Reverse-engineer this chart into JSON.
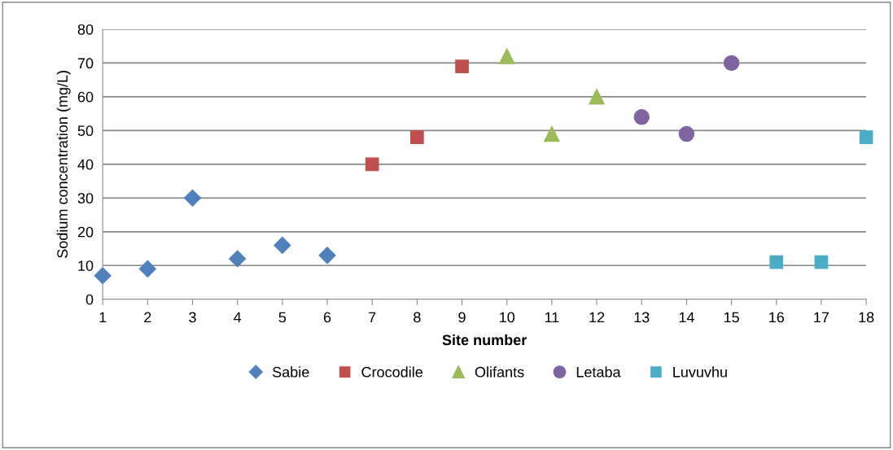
{
  "chart_data": {
    "type": "scatter",
    "xlabel": "Site number",
    "ylabel": "Sodium concentration (mg/L)",
    "xlim": [
      1,
      18
    ],
    "xticks": [
      1,
      2,
      3,
      4,
      5,
      6,
      7,
      8,
      9,
      10,
      11,
      12,
      13,
      14,
      15,
      16,
      17,
      18
    ],
    "ylim": [
      0,
      80
    ],
    "yticks": [
      0,
      10,
      20,
      30,
      40,
      50,
      60,
      70,
      80
    ],
    "grid": "y",
    "legend": "bottom",
    "series": [
      {
        "name": "Sabie",
        "color": "#4f81bd",
        "marker": "diamond",
        "x": [
          1,
          2,
          3,
          4,
          5,
          6
        ],
        "values": [
          7,
          9,
          30,
          12,
          16,
          13
        ]
      },
      {
        "name": "Crocodile",
        "color": "#c0504d",
        "marker": "square",
        "x": [
          7,
          8,
          9
        ],
        "values": [
          40,
          48,
          69
        ]
      },
      {
        "name": "Olifants",
        "color": "#9bbb59",
        "marker": "triangle",
        "x": [
          10,
          11,
          12
        ],
        "values": [
          72,
          49,
          60
        ]
      },
      {
        "name": "Letaba",
        "color": "#8064a2",
        "marker": "circle",
        "x": [
          13,
          14,
          15
        ],
        "values": [
          54,
          49,
          70
        ]
      },
      {
        "name": "Luvuvhu",
        "color": "#4bacc6",
        "marker": "square",
        "x": [
          16,
          17,
          18
        ],
        "values": [
          11,
          11,
          48
        ]
      }
    ]
  }
}
